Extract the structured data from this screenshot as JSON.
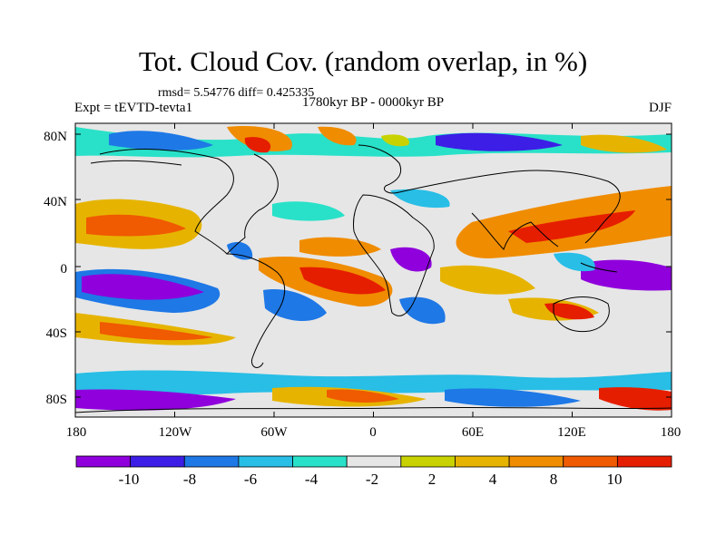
{
  "title": "Tot. Cloud Cov. (random overlap, in %)",
  "subtitle": "rmsd= 5.54776 diff= 0.425335",
  "left_label": "Expt = tEVTD-tevta1",
  "center_label": "1780kyr BP - 0000kyr BP",
  "right_label": "DJF",
  "x_ticks": [
    "180",
    "120W",
    "60W",
    "0",
    "60E",
    "120E",
    "180"
  ],
  "y_ticks": [
    "80N",
    "40N",
    "0",
    "40S",
    "80S"
  ],
  "colorbar": {
    "colors": [
      "#8f00dc",
      "#3c1ee6",
      "#1e78e6",
      "#28bee6",
      "#28e1c8",
      "#e6e6e6",
      "#c8d200",
      "#e6b400",
      "#f08c00",
      "#f05a00",
      "#e61e00"
    ],
    "labels": [
      "-10",
      "-8",
      "-6",
      "-4",
      "-2",
      "2",
      "4",
      "8",
      "10"
    ]
  }
}
